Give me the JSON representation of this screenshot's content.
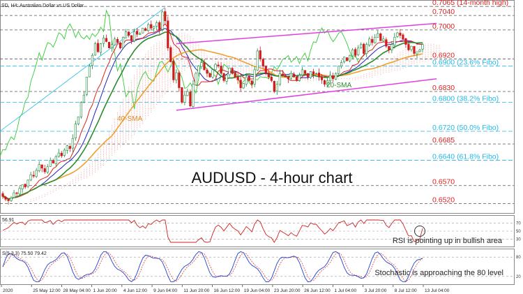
{
  "header": {
    "symbol_label": "SD, H4: Australian Dollar vs US Dollar"
  },
  "colors": {
    "up_candle": "#1a8a3a",
    "down_candle": "#d11a1a",
    "sma20": "#2d8b2d",
    "sma40": "#f0a030",
    "tenkan": "#e02020",
    "kijun": "#2020c0",
    "ichimoku_span": "#33cc33",
    "cloud": "#f2a0a0",
    "channel": "#e040e0",
    "fibo": "#22b8e8",
    "resistance": "#333333",
    "high": "#e02020",
    "rsi": "#d02020",
    "stoch_main": "#2040d0",
    "stoch_signal": "#e04040"
  },
  "main_chart": {
    "title": "AUDUSD - 4-hour chart",
    "sma_labels": {
      "sma20": "20-SMA",
      "sma40": "40-SMA"
    },
    "levels": [
      {
        "value": 0.7065,
        "label": "0.7065 (14-month high)",
        "kind": "high"
      },
      {
        "value": 0.704,
        "label": "0.7040",
        "kind": "resistance"
      },
      {
        "value": 0.7,
        "label": "0.7000",
        "kind": "resistance"
      },
      {
        "value": 0.692,
        "label": "0.6920",
        "kind": "resistance"
      },
      {
        "value": 0.69,
        "label": "0.6900 (23.6% Fibo)",
        "kind": "fibo"
      },
      {
        "value": 0.683,
        "label": "0.6830",
        "kind": "resistance"
      },
      {
        "value": 0.68,
        "label": "0.6800 (38.2% Fibo)",
        "kind": "fibo"
      },
      {
        "value": 0.672,
        "label": "0.6720 (50.0% Fibo)",
        "kind": "fibo"
      },
      {
        "value": 0.6685,
        "label": "0.6685",
        "kind": "resistance"
      },
      {
        "value": 0.664,
        "label": "0.6640 (61.8% Fibo)",
        "kind": "fibo"
      },
      {
        "value": 0.657,
        "label": "0.6570",
        "kind": "resistance"
      },
      {
        "value": 0.652,
        "label": "0.6520",
        "kind": "resistance"
      }
    ],
    "x_labels": [
      "2020",
      "25 May 12:00",
      "28 May 04:00",
      "1 Jun 20:00",
      "4 Jun 12:00",
      "9 Jun 04:00",
      "11 Jun 20:00",
      "16 Jun 12:00",
      "19 Jun 04:00",
      "23 Jun 20:00",
      "26 Jun 12:00",
      "1 Jul 04:00",
      "3 Jul 20:00",
      "8 Jul 12:00",
      "13 Jul 04:00"
    ]
  },
  "rsi_panel": {
    "header": "56.91",
    "annotation": "RSI is pointing up in bullish area",
    "scale_labels": [
      "70",
      "50",
      "30"
    ]
  },
  "stoch_panel": {
    "header": "S(5,3,3) 75.50 79.42",
    "annotation": "Stochastic is approaching the 80 level",
    "scale_labels": [
      "80",
      "20"
    ]
  },
  "chart_data": {
    "type": "candlestick",
    "symbol": "AUDUSD",
    "timeframe": "H4",
    "title": "AUDUSD - 4-hour chart",
    "ylim": [
      0.65,
      0.7075
    ],
    "candles_close": [
      0.654,
      0.6532,
      0.6528,
      0.6536,
      0.655,
      0.6548,
      0.6562,
      0.6572,
      0.6566,
      0.6585,
      0.66,
      0.6596,
      0.6612,
      0.6628,
      0.6618,
      0.6608,
      0.6622,
      0.664,
      0.6632,
      0.665,
      0.666,
      0.6652,
      0.6668,
      0.668,
      0.6672,
      0.67,
      0.674,
      0.676,
      0.68,
      0.682,
      0.687,
      0.69,
      0.693,
      0.6962,
      0.694,
      0.6962,
      0.6978,
      0.6968,
      0.695,
      0.696,
      0.6975,
      0.6965,
      0.695,
      0.698,
      0.6995,
      0.6985,
      0.697,
      0.6995,
      0.6988,
      0.699,
      0.7005,
      0.6998,
      0.7015,
      0.7005,
      0.701,
      0.702,
      0.7,
      0.705,
      0.7025,
      0.695,
      0.6912,
      0.6862,
      0.6882,
      0.684,
      0.68,
      0.682,
      0.683,
      0.679,
      0.685,
      0.688,
      0.69,
      0.691,
      0.689,
      0.688,
      0.687,
      0.689,
      0.6905,
      0.69,
      0.688,
      0.686,
      0.6875,
      0.6895,
      0.688,
      0.687,
      0.6862,
      0.684,
      0.6852,
      0.687,
      0.686,
      0.685,
      0.689,
      0.6942,
      0.692,
      0.69,
      0.688,
      0.687,
      0.686,
      0.683,
      0.685,
      0.688,
      0.6875,
      0.687,
      0.6865,
      0.688,
      0.687,
      0.686,
      0.6875,
      0.689,
      0.688,
      0.687,
      0.6885,
      0.6878,
      0.688,
      0.687,
      0.6862,
      0.685,
      0.686,
      0.6875,
      0.6865,
      0.688,
      0.69,
      0.691,
      0.6925,
      0.6915,
      0.693,
      0.6945,
      0.693,
      0.695,
      0.696,
      0.6935,
      0.696,
      0.6975,
      0.6965,
      0.698,
      0.699,
      0.697,
      0.6975,
      0.6955,
      0.6945,
      0.696,
      0.698,
      0.6992,
      0.6985,
      0.6975,
      0.696,
      0.6945,
      0.6955,
      0.6935,
      0.694,
      0.6945,
      0.696
    ],
    "channel": {
      "upper": {
        "from": 0.6962,
        "to": 0.7018
      },
      "lower": {
        "from": 0.6778,
        "to": 0.6865
      }
    },
    "series": [
      {
        "name": "20-SMA",
        "role": "sma20"
      },
      {
        "name": "40-SMA",
        "role": "sma40"
      }
    ],
    "rsi": {
      "last": 56.91,
      "levels": [
        70,
        50,
        30
      ],
      "ylim": [
        15,
        85
      ]
    },
    "stochastic": {
      "params": "5,3,3",
      "main_last": 75.5,
      "signal_last": 79.42,
      "levels": [
        80,
        20
      ],
      "ylim": [
        0,
        100
      ]
    }
  }
}
